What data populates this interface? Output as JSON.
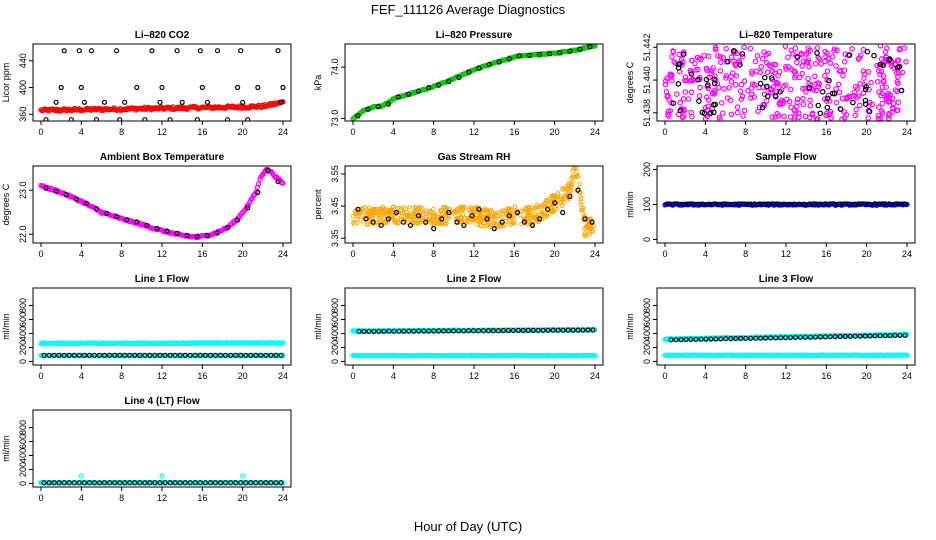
{
  "figure": {
    "title": "FEF_111126  Average Diagnostics",
    "xlabel": "Hour of Day (UTC)"
  },
  "chart_data": [
    {
      "type": "scatter",
      "title": "Li–820 CO2",
      "ylabel": "Licor ppm",
      "xlim": [
        0,
        24
      ],
      "ylim": [
        350,
        465
      ],
      "xticks": [
        "0",
        "4",
        "8",
        "12",
        "16",
        "20",
        "24"
      ],
      "yticks": [
        {
          "v": 360,
          "label": "360"
        },
        {
          "v": 400,
          "label": "400"
        },
        {
          "v": 440,
          "label": "440"
        }
      ],
      "series": [
        {
          "color": "#ff0000",
          "style": "dense",
          "x": [
            0,
            4,
            8,
            12,
            16,
            20,
            22,
            23,
            24
          ],
          "y": [
            366,
            367,
            368,
            369,
            370,
            371,
            372,
            375,
            378
          ],
          "noise": 2
        },
        {
          "color": "#000000",
          "style": "sparse",
          "x": [
            0.5,
            1.5,
            2,
            2.3,
            3,
            3.8,
            4,
            4.3,
            5,
            5.5,
            6.3,
            7.5,
            7.8,
            8.3,
            9.5,
            10.3,
            11,
            11.8,
            12,
            12.8,
            13.5,
            14,
            15.5,
            15.8,
            16,
            16.5,
            17.5,
            18.5,
            19.5,
            19.8,
            20,
            20.5,
            21.5,
            23.5,
            23.8,
            24
          ],
          "y": [
            352,
            378,
            400,
            455,
            352,
            455,
            400,
            378,
            455,
            352,
            378,
            455,
            352,
            378,
            400,
            352,
            455,
            378,
            400,
            352,
            455,
            378,
            352,
            455,
            400,
            378,
            455,
            352,
            400,
            455,
            378,
            352,
            400,
            455,
            378,
            400
          ]
        }
      ]
    },
    {
      "type": "scatter",
      "title": "Li–820 Pressure",
      "ylabel": "kPa",
      "xlim": [
        0,
        24
      ],
      "ylim": [
        72.95,
        74.45
      ],
      "xticks": [
        "0",
        "4",
        "8",
        "12",
        "16",
        "20",
        "24"
      ],
      "yticks": [
        {
          "v": 73.0,
          "label": "73.0"
        },
        {
          "v": 74.0,
          "label": "74.0"
        }
      ],
      "series": [
        {
          "color": "#00cc00",
          "style": "dense",
          "x": [
            0,
            1,
            2,
            3,
            4,
            6,
            8,
            10,
            12,
            14,
            16,
            18,
            20,
            22,
            24
          ],
          "y": [
            73.0,
            73.15,
            73.22,
            73.25,
            73.38,
            73.5,
            73.62,
            73.78,
            73.95,
            74.08,
            74.2,
            74.24,
            74.27,
            74.33,
            74.42
          ],
          "noise": 0.01
        },
        {
          "color": "#000000",
          "style": "sparse",
          "x": [
            0.5,
            1.5,
            2.5,
            3.5,
            4.5,
            5.5,
            6.5,
            7.5,
            8.5,
            9.5,
            10.5,
            11.5,
            12.5,
            13.5,
            14.5,
            15.5,
            16.5,
            17.5,
            18.5,
            19.5,
            20.5,
            21.5,
            22.5,
            23.5
          ],
          "y": [
            73.05,
            73.18,
            73.23,
            73.28,
            73.42,
            73.47,
            73.53,
            73.6,
            73.65,
            73.72,
            73.8,
            73.9,
            73.98,
            74.05,
            74.1,
            74.16,
            74.22,
            74.23,
            74.25,
            74.26,
            74.28,
            74.31,
            74.35,
            74.4
          ]
        }
      ]
    },
    {
      "type": "scatter",
      "title": "Li–820 Temperature",
      "ylabel": "degrees C",
      "xlim": [
        0,
        24
      ],
      "ylim": [
        51.4375,
        51.4422
      ],
      "xticks": [
        "0",
        "4",
        "8",
        "12",
        "16",
        "20",
        "24"
      ],
      "yticks": [
        {
          "v": 51.438,
          "label": "51.438"
        },
        {
          "v": 51.44,
          "label": "51.440"
        },
        {
          "v": 51.442,
          "label": "51.442"
        }
      ],
      "series": [
        {
          "color": "#ff00ff",
          "style": "noise",
          "count": 420,
          "x_range": [
            0,
            24
          ],
          "y_range": [
            51.4376,
            51.4421
          ]
        },
        {
          "color": "#000000",
          "style": "noise",
          "count": 60,
          "x_range": [
            0.5,
            23.8
          ],
          "y_range": [
            51.4379,
            51.4418
          ]
        }
      ]
    },
    {
      "type": "scatter",
      "title": "Ambient Box Temperature",
      "ylabel": "degrees C",
      "xlim": [
        0,
        24
      ],
      "ylim": [
        21.8,
        23.55
      ],
      "xticks": [
        "0",
        "4",
        "8",
        "12",
        "16",
        "20",
        "24"
      ],
      "yticks": [
        {
          "v": 22.0,
          "label": "22.0"
        },
        {
          "v": 23.0,
          "label": "23.0"
        }
      ],
      "series": [
        {
          "color": "#ff00ff",
          "style": "dense",
          "x": [
            0,
            2,
            4,
            6,
            8,
            10,
            12,
            14,
            15.5,
            17,
            18.5,
            19.5,
            20.5,
            21.3,
            21.8,
            22.3,
            22.8,
            23.3,
            24
          ],
          "y": [
            23.1,
            22.95,
            22.75,
            22.5,
            22.35,
            22.22,
            22.08,
            21.97,
            21.93,
            22.0,
            22.15,
            22.35,
            22.65,
            22.95,
            23.3,
            23.48,
            23.42,
            23.3,
            23.15
          ],
          "noise": 0.02
        },
        {
          "color": "#000000",
          "style": "sparse",
          "x": [
            0.5,
            1.5,
            2.5,
            3.5,
            4.5,
            5.5,
            6.5,
            7.5,
            8.5,
            9.5,
            10.5,
            11.5,
            12.5,
            13.5,
            14.5,
            15.5,
            16.5,
            17.5,
            18.5,
            19.5,
            20.5,
            21.5,
            22.5,
            23.5
          ],
          "y": [
            23.05,
            22.98,
            22.9,
            22.8,
            22.7,
            22.58,
            22.47,
            22.4,
            22.33,
            22.28,
            22.2,
            22.13,
            22.07,
            22.02,
            21.97,
            21.95,
            21.97,
            22.03,
            22.15,
            22.32,
            22.6,
            22.95,
            23.45,
            23.2
          ]
        }
      ]
    },
    {
      "type": "scatter",
      "title": "Gas Stream RH",
      "ylabel": "percent",
      "xlim": [
        0,
        24
      ],
      "ylim": [
        3.335,
        3.575
      ],
      "xticks": [
        "0",
        "4",
        "8",
        "12",
        "16",
        "20",
        "24"
      ],
      "yticks": [
        {
          "v": 3.35,
          "label": "3.35"
        },
        {
          "v": 3.45,
          "label": "3.45"
        },
        {
          "v": 3.55,
          "label": "3.55"
        }
      ],
      "series": [
        {
          "color": "#ffa500",
          "style": "band",
          "count": 520,
          "x": [
            0,
            2,
            4,
            6,
            8,
            10,
            12,
            14,
            16,
            18,
            19.5,
            20.5,
            21.5,
            22,
            22.5,
            23,
            24
          ],
          "y": [
            3.42,
            3.42,
            3.42,
            3.42,
            3.42,
            3.42,
            3.42,
            3.41,
            3.42,
            3.42,
            3.45,
            3.47,
            3.5,
            3.56,
            3.5,
            3.38,
            3.4
          ],
          "spread": 0.028
        },
        {
          "color": "#000000",
          "style": "sparse",
          "x": [
            0.5,
            1.3,
            2,
            2.8,
            3.5,
            4.3,
            5,
            5.7,
            6.5,
            7.2,
            8,
            8.8,
            9.5,
            10.3,
            11,
            11.8,
            12.5,
            13.3,
            14,
            14.8,
            15.5,
            16.3,
            17,
            17.8,
            18.5,
            19.3,
            20,
            20.8,
            21.5,
            22.3,
            23,
            23.7
          ],
          "y": [
            3.44,
            3.41,
            3.4,
            3.39,
            3.41,
            3.43,
            3.4,
            3.39,
            3.42,
            3.4,
            3.38,
            3.41,
            3.43,
            3.4,
            3.39,
            3.42,
            3.44,
            3.41,
            3.38,
            3.4,
            3.42,
            3.43,
            3.4,
            3.39,
            3.41,
            3.44,
            3.46,
            3.43,
            3.48,
            3.5,
            3.41,
            3.4
          ]
        }
      ]
    },
    {
      "type": "scatter",
      "title": "Sample Flow",
      "ylabel": "ml/min",
      "xlim": [
        0,
        24
      ],
      "ylim": [
        -10,
        210
      ],
      "xticks": [
        "0",
        "4",
        "8",
        "12",
        "16",
        "20",
        "24"
      ],
      "yticks": [
        {
          "v": 0,
          "label": "0"
        },
        {
          "v": 100,
          "label": "100"
        },
        {
          "v": 200,
          "label": "200"
        }
      ],
      "series": [
        {
          "color": "#0000ff",
          "style": "dense",
          "x": [
            0,
            24
          ],
          "y": [
            100,
            100
          ],
          "noise": 2
        },
        {
          "color": "#000000",
          "style": "sparse_uniform",
          "count": 48,
          "x_range": [
            0.3,
            23.8
          ],
          "y": 101
        }
      ]
    },
    {
      "type": "scatter",
      "title": "Line 1 Flow",
      "ylabel": "ml/min",
      "xlim": [
        0,
        24
      ],
      "ylim": [
        -50,
        1050
      ],
      "xticks": [
        "0",
        "4",
        "8",
        "12",
        "16",
        "20",
        "24"
      ],
      "yticks": [
        {
          "v": 0,
          "label": "0"
        },
        {
          "v": 200,
          "label": "200"
        },
        {
          "v": 400,
          "label": "400"
        },
        {
          "v": 600,
          "label": "600"
        },
        {
          "v": 800,
          "label": "800"
        }
      ],
      "series": [
        {
          "color": "#00ffff",
          "style": "dense",
          "x": [
            0,
            24
          ],
          "y": [
            260,
            265
          ],
          "noise": 5
        },
        {
          "color": "#00ffff",
          "style": "dense",
          "x": [
            0,
            24
          ],
          "y": [
            85,
            85
          ],
          "noise": 3
        },
        {
          "color": "#000000",
          "style": "sparse_uniform",
          "count": 48,
          "x_range": [
            0.3,
            23.8
          ],
          "y": 88
        }
      ]
    },
    {
      "type": "scatter",
      "title": "Line 2 Flow",
      "ylabel": "ml/min",
      "xlim": [
        0,
        24
      ],
      "ylim": [
        -50,
        1050
      ],
      "xticks": [
        "0",
        "4",
        "8",
        "12",
        "16",
        "20",
        "24"
      ],
      "yticks": [
        {
          "v": 0,
          "label": "0"
        },
        {
          "v": 200,
          "label": "200"
        },
        {
          "v": 400,
          "label": "400"
        },
        {
          "v": 600,
          "label": "600"
        },
        {
          "v": 800,
          "label": "800"
        }
      ],
      "series": [
        {
          "color": "#00ffff",
          "style": "dense",
          "x": [
            0,
            24
          ],
          "y": [
            435,
            455
          ],
          "noise": 5
        },
        {
          "color": "#00ffff",
          "style": "dense",
          "x": [
            0,
            24
          ],
          "y": [
            85,
            85
          ],
          "noise": 3
        },
        {
          "color": "#000000",
          "style": "sparse_uniform",
          "count": 48,
          "x_range": [
            0.6,
            23.8
          ],
          "y_from": 430,
          "y_to": 450
        }
      ]
    },
    {
      "type": "scatter",
      "title": "Line 3 Flow",
      "ylabel": "ml/min",
      "xlim": [
        0,
        24
      ],
      "ylim": [
        -50,
        1050
      ],
      "xticks": [
        "0",
        "4",
        "8",
        "12",
        "16",
        "20",
        "24"
      ],
      "yticks": [
        {
          "v": 0,
          "label": "0"
        },
        {
          "v": 200,
          "label": "200"
        },
        {
          "v": 400,
          "label": "400"
        },
        {
          "v": 600,
          "label": "600"
        },
        {
          "v": 800,
          "label": "800"
        }
      ],
      "series": [
        {
          "color": "#00ffff",
          "style": "dense",
          "x": [
            0,
            24
          ],
          "y": [
            320,
            385
          ],
          "noise": 6
        },
        {
          "color": "#00ffff",
          "style": "dense",
          "x": [
            0,
            24
          ],
          "y": [
            90,
            90
          ],
          "noise": 3
        },
        {
          "color": "#000000",
          "style": "sparse_uniform",
          "count": 48,
          "x_range": [
            0.6,
            23.8
          ],
          "y_from": 310,
          "y_to": 375
        }
      ]
    },
    {
      "type": "scatter",
      "title": "Line 4 (LT) Flow",
      "ylabel": "ml/min",
      "xlim": [
        0,
        24
      ],
      "ylim": [
        -50,
        1050
      ],
      "xticks": [
        "0",
        "4",
        "8",
        "12",
        "16",
        "20",
        "24"
      ],
      "yticks": [
        {
          "v": 0,
          "label": "0"
        },
        {
          "v": 200,
          "label": "200"
        },
        {
          "v": 400,
          "label": "400"
        },
        {
          "v": 600,
          "label": "600"
        },
        {
          "v": 800,
          "label": "800"
        }
      ],
      "series": [
        {
          "color": "#00ffff",
          "style": "dense",
          "x": [
            0,
            24
          ],
          "y": [
            10,
            10
          ],
          "noise": 3
        },
        {
          "color": "#00ffff",
          "style": "sparse",
          "x": [
            0,
            4,
            12,
            20
          ],
          "y": [
            15,
            110,
            110,
            110
          ]
        },
        {
          "color": "#000000",
          "style": "sparse_uniform",
          "count": 48,
          "x_range": [
            0.3,
            23.8
          ],
          "y": 12
        }
      ]
    }
  ]
}
